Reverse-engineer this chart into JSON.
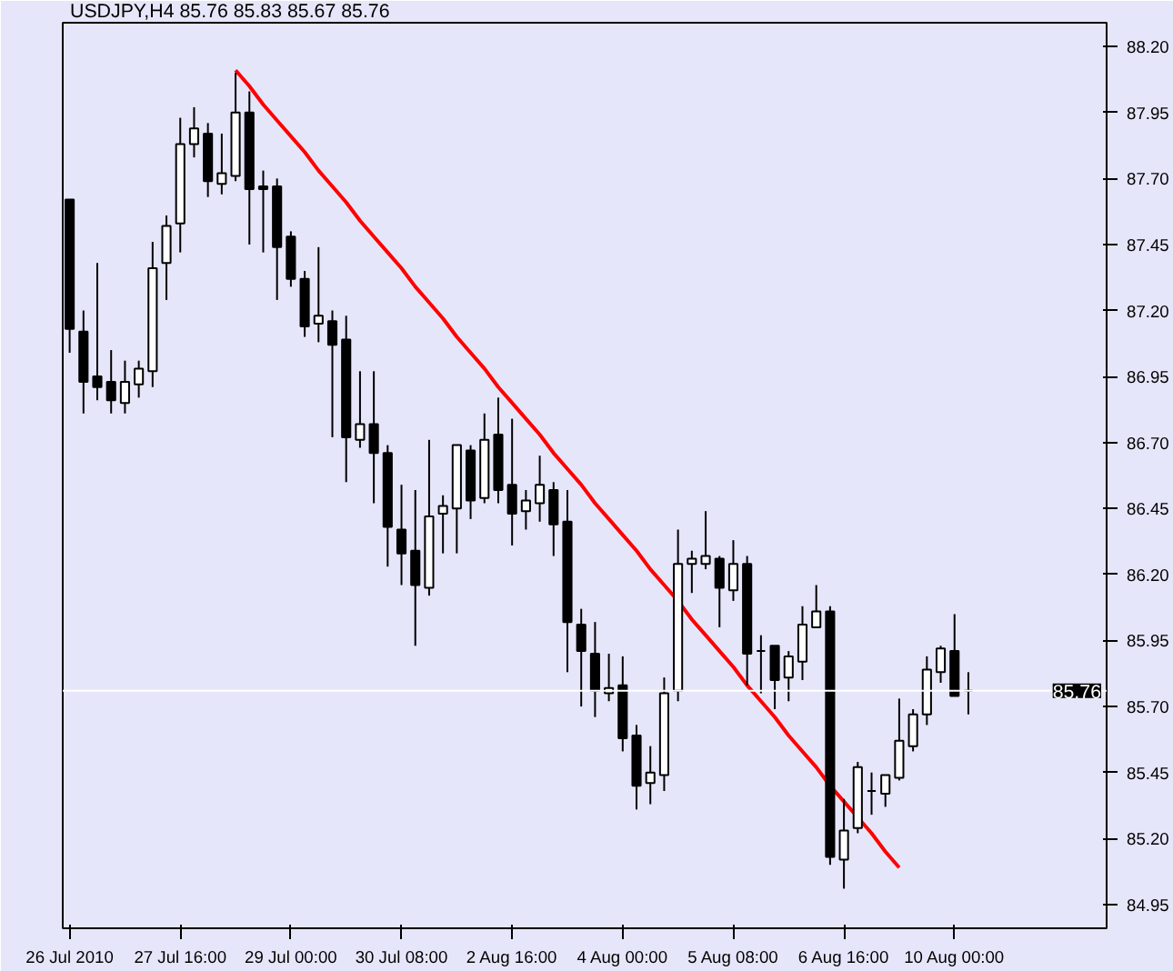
{
  "chart_data": {
    "type": "candlestick",
    "title": "USDJPY,H4  85.76 85.83 85.67 85.76",
    "categories": [
      "26 Jul 2010",
      null,
      null,
      null,
      null,
      null,
      null,
      null,
      "27 Jul 16:00",
      null,
      null,
      null,
      null,
      null,
      null,
      null,
      "29 Jul 00:00",
      null,
      null,
      null,
      null,
      null,
      null,
      null,
      "30 Jul 08:00",
      null,
      null,
      null,
      null,
      null,
      null,
      null,
      "2 Aug 16:00",
      null,
      null,
      null,
      null,
      null,
      null,
      null,
      "4 Aug 00:00",
      null,
      null,
      null,
      null,
      null,
      null,
      null,
      "5 Aug 08:00",
      null,
      null,
      null,
      null,
      null,
      null,
      null,
      "6 Aug 16:00",
      null,
      null,
      null,
      null,
      null,
      null,
      null,
      "10 Aug 00:00",
      null
    ],
    "ohlc": [
      [
        87.62,
        87.62,
        87.04,
        87.13
      ],
      [
        87.12,
        87.2,
        86.81,
        86.93
      ],
      [
        86.95,
        87.38,
        86.86,
        86.91
      ],
      [
        86.93,
        87.05,
        86.81,
        86.86
      ],
      [
        86.85,
        87.01,
        86.81,
        86.93
      ],
      [
        86.92,
        87.01,
        86.87,
        86.98
      ],
      [
        86.97,
        87.46,
        86.91,
        87.36
      ],
      [
        87.38,
        87.56,
        87.24,
        87.52
      ],
      [
        87.53,
        87.93,
        87.42,
        87.83
      ],
      [
        87.83,
        87.97,
        87.78,
        87.89
      ],
      [
        87.87,
        87.91,
        87.63,
        87.69
      ],
      [
        87.68,
        87.87,
        87.64,
        87.72
      ],
      [
        87.71,
        88.1,
        87.69,
        87.95
      ],
      [
        87.95,
        88.03,
        87.45,
        87.66
      ],
      [
        87.67,
        87.73,
        87.42,
        87.66
      ],
      [
        87.67,
        87.7,
        87.24,
        87.44
      ],
      [
        87.48,
        87.5,
        87.29,
        87.32
      ],
      [
        87.32,
        87.35,
        87.1,
        87.14
      ],
      [
        87.15,
        87.44,
        87.08,
        87.18
      ],
      [
        87.16,
        87.2,
        86.72,
        87.07
      ],
      [
        87.09,
        87.18,
        86.55,
        86.72
      ],
      [
        86.71,
        86.97,
        86.68,
        86.77
      ],
      [
        86.77,
        86.97,
        86.47,
        86.66
      ],
      [
        86.66,
        86.69,
        86.23,
        86.38
      ],
      [
        86.37,
        86.54,
        86.16,
        86.28
      ],
      [
        86.29,
        86.52,
        85.93,
        86.16
      ],
      [
        86.15,
        86.71,
        86.12,
        86.42
      ],
      [
        86.43,
        86.5,
        86.28,
        86.46
      ],
      [
        86.45,
        86.69,
        86.28,
        86.69
      ],
      [
        86.67,
        86.69,
        86.41,
        86.48
      ],
      [
        86.49,
        86.81,
        86.47,
        86.71
      ],
      [
        86.73,
        86.87,
        86.47,
        86.52
      ],
      [
        86.54,
        86.79,
        86.31,
        86.43
      ],
      [
        86.44,
        86.52,
        86.37,
        86.48
      ],
      [
        86.47,
        86.65,
        86.4,
        86.54
      ],
      [
        86.52,
        86.55,
        86.27,
        86.39
      ],
      [
        86.4,
        86.52,
        85.83,
        86.02
      ],
      [
        86.01,
        86.07,
        85.7,
        85.91
      ],
      [
        85.9,
        86.02,
        85.66,
        85.76
      ],
      [
        85.75,
        85.9,
        85.72,
        85.77
      ],
      [
        85.78,
        85.89,
        85.53,
        85.58
      ],
      [
        85.59,
        85.63,
        85.31,
        85.4
      ],
      [
        85.41,
        85.55,
        85.33,
        85.45
      ],
      [
        85.44,
        85.81,
        85.38,
        85.75
      ],
      [
        85.76,
        86.37,
        85.72,
        86.24
      ],
      [
        86.24,
        86.29,
        86.13,
        86.26
      ],
      [
        86.24,
        86.44,
        86.22,
        86.27
      ],
      [
        86.26,
        86.27,
        86.0,
        86.15
      ],
      [
        86.14,
        86.33,
        86.1,
        86.24
      ],
      [
        86.24,
        86.27,
        85.78,
        85.9
      ],
      [
        85.91,
        85.97,
        85.75,
        85.91
      ],
      [
        85.93,
        85.93,
        85.69,
        85.8
      ],
      [
        85.81,
        85.91,
        85.72,
        85.89
      ],
      [
        85.87,
        86.08,
        85.8,
        86.01
      ],
      [
        86.0,
        86.16,
        86.0,
        86.06
      ],
      [
        86.06,
        86.08,
        85.1,
        85.13
      ],
      [
        85.12,
        85.35,
        85.01,
        85.23
      ],
      [
        85.24,
        85.49,
        85.22,
        85.47
      ],
      [
        85.38,
        85.45,
        85.29,
        85.38
      ],
      [
        85.37,
        85.44,
        85.32,
        85.44
      ],
      [
        85.43,
        85.73,
        85.42,
        85.57
      ],
      [
        85.55,
        85.69,
        85.53,
        85.67
      ],
      [
        85.67,
        85.89,
        85.63,
        85.84
      ],
      [
        85.83,
        85.93,
        85.79,
        85.92
      ],
      [
        85.91,
        86.05,
        85.74,
        85.74
      ],
      [
        85.76,
        85.83,
        85.67,
        85.76
      ]
    ],
    "series": [
      {
        "type": "line",
        "color": "#ff0000",
        "values": [
          null,
          null,
          null,
          null,
          null,
          null,
          null,
          null,
          null,
          null,
          null,
          null,
          88.11,
          88.05,
          87.98,
          87.92,
          87.86,
          87.8,
          87.73,
          87.67,
          87.61,
          87.54,
          87.48,
          87.42,
          87.36,
          87.29,
          87.23,
          87.17,
          87.1,
          87.04,
          86.98,
          86.91,
          86.85,
          86.79,
          86.73,
          86.66,
          86.6,
          86.54,
          86.47,
          86.41,
          86.35,
          86.29,
          86.22,
          86.16,
          86.1,
          86.03,
          85.97,
          85.91,
          85.85,
          85.78,
          85.72,
          85.66,
          85.59,
          85.53,
          85.47,
          85.4,
          85.34,
          85.28,
          85.22,
          85.15,
          85.09,
          null,
          null,
          null,
          null,
          null
        ]
      }
    ],
    "ref_lines": [
      {
        "axis": "y",
        "value": 85.76,
        "label": "85.76",
        "color": "#ffffff"
      }
    ],
    "ylim": [
      84.86,
      88.29
    ],
    "yticks": [
      {
        "value": 84.95,
        "label": "84.95"
      },
      {
        "value": 85.2,
        "label": "85.20"
      },
      {
        "value": 85.45,
        "label": "85.45"
      },
      {
        "value": 85.7,
        "label": "85.70"
      },
      {
        "value": 85.95,
        "label": "85.95"
      },
      {
        "value": 86.2,
        "label": "86.20"
      },
      {
        "value": 86.45,
        "label": "86.45"
      },
      {
        "value": 86.7,
        "label": "86.70"
      },
      {
        "value": 86.95,
        "label": "86.95"
      },
      {
        "value": 87.2,
        "label": "87.20"
      },
      {
        "value": 87.45,
        "label": "87.45"
      },
      {
        "value": 87.7,
        "label": "87.70"
      },
      {
        "value": 87.95,
        "label": "87.95"
      },
      {
        "value": 88.2,
        "label": "88.20"
      }
    ],
    "grid": false
  }
}
